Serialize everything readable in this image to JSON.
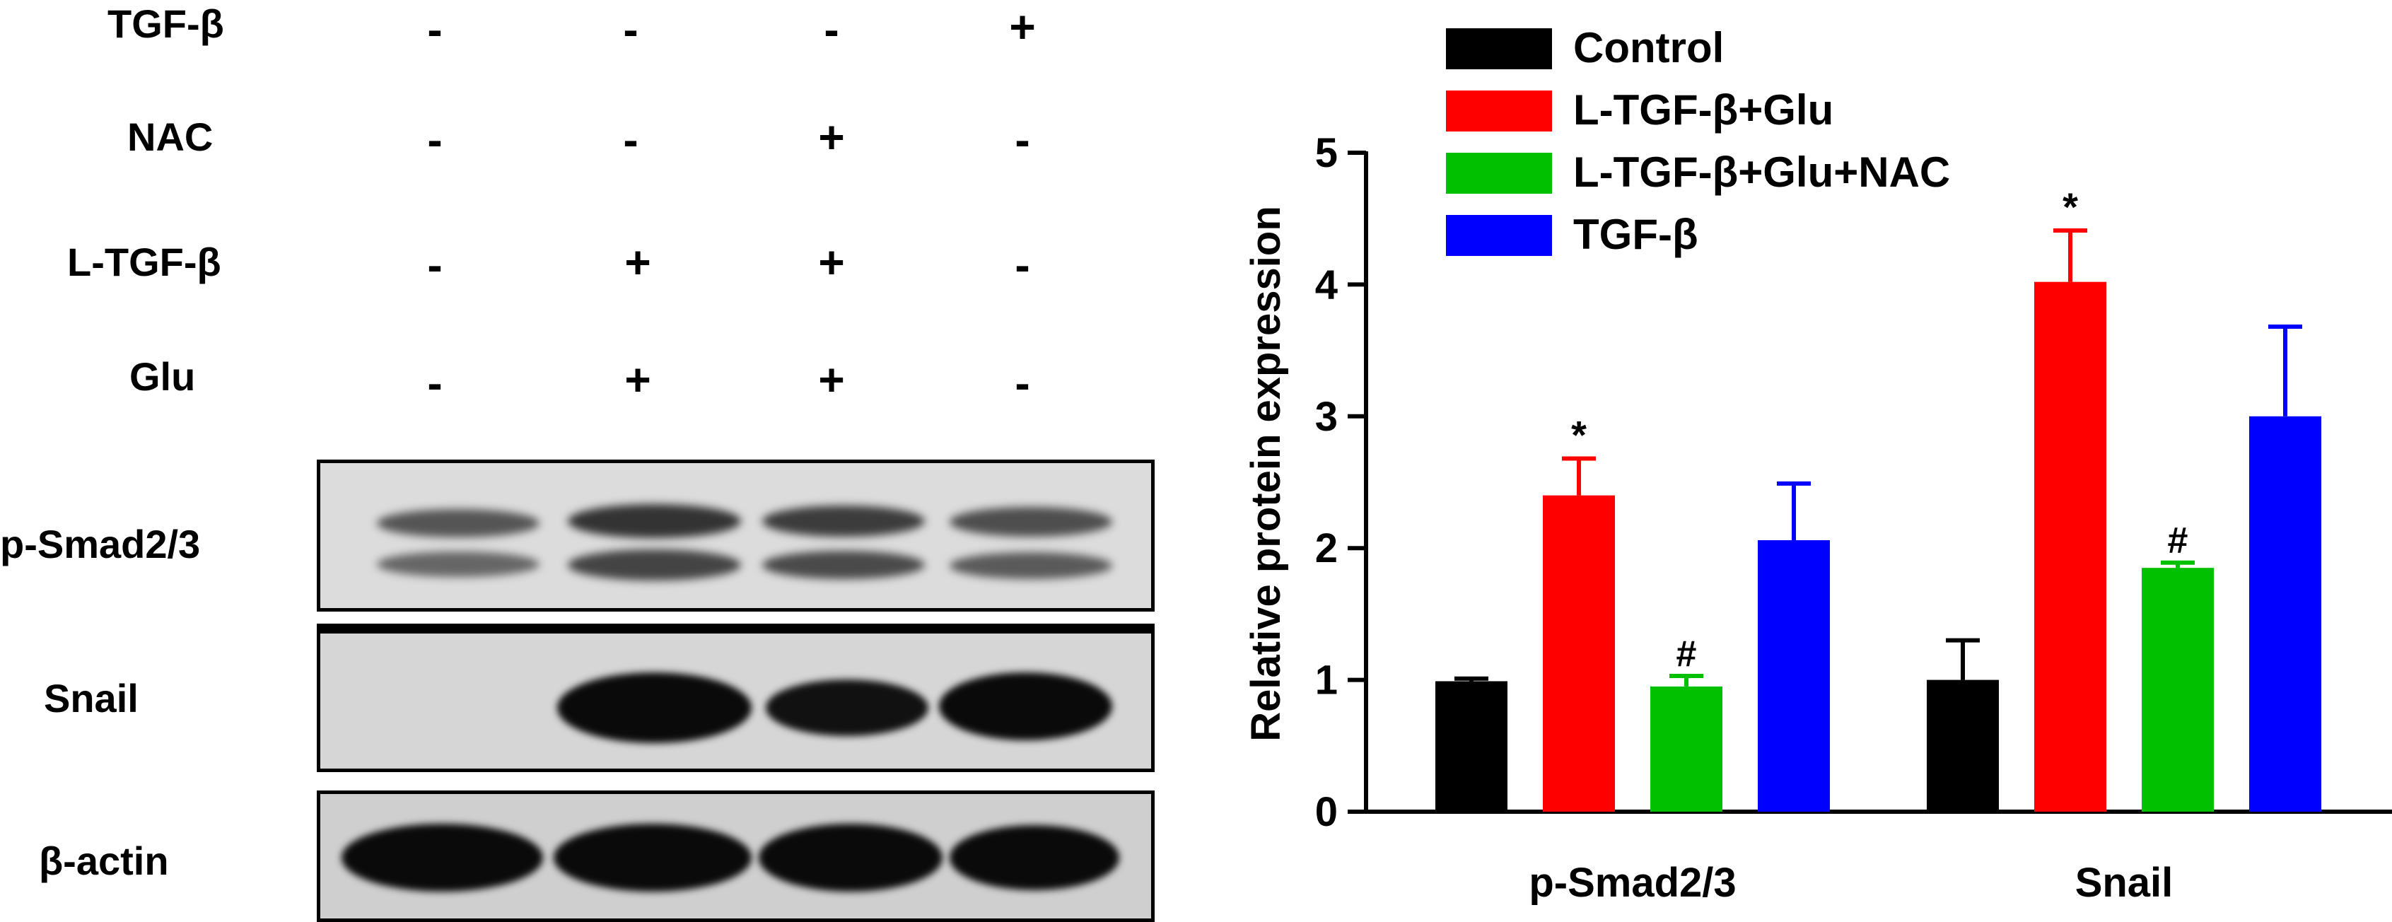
{
  "blot": {
    "treatments": [
      {
        "label": "TGF-β",
        "signs": [
          "-",
          "-",
          "-",
          "+"
        ]
      },
      {
        "label": "NAC",
        "signs": [
          "-",
          "-",
          "+",
          "-"
        ]
      },
      {
        "label": "L-TGF-β",
        "signs": [
          "-",
          "+",
          "+",
          "-"
        ]
      },
      {
        "label": "Glu",
        "signs": [
          "-",
          "+",
          "+",
          "-"
        ]
      }
    ],
    "rows": [
      {
        "label": "p-Smad2/3"
      },
      {
        "label": "Snail"
      },
      {
        "label": "β-actin"
      }
    ]
  },
  "chart_data": {
    "type": "bar",
    "categories": [
      "p-Smad2/3",
      "Snail"
    ],
    "series": [
      {
        "name": "Control",
        "color": "#000000",
        "values": [
          0.99,
          1.0
        ],
        "errors": [
          0.02,
          0.3
        ],
        "annotations": [
          "",
          ""
        ]
      },
      {
        "name": "L-TGF-β+Glu",
        "color": "#ff0000",
        "values": [
          2.4,
          4.02
        ],
        "errors": [
          0.28,
          0.39
        ],
        "annotations": [
          "*",
          "*"
        ]
      },
      {
        "name": "L-TGF-β+Glu+NAC",
        "color": "#00c000",
        "values": [
          0.95,
          1.85
        ],
        "errors": [
          0.08,
          0.04
        ],
        "annotations": [
          "#",
          "#"
        ]
      },
      {
        "name": "TGF-β",
        "color": "#0000ff",
        "values": [
          2.06,
          3.0
        ],
        "errors": [
          0.43,
          0.68
        ],
        "annotations": [
          "",
          ""
        ]
      }
    ],
    "title": "",
    "xlabel": "",
    "ylabel": "Relative protein expression",
    "ylim": [
      0,
      5
    ],
    "yticks": [
      "0",
      "1",
      "2",
      "3",
      "4",
      "5"
    ],
    "legend": "top",
    "grid": false
  }
}
